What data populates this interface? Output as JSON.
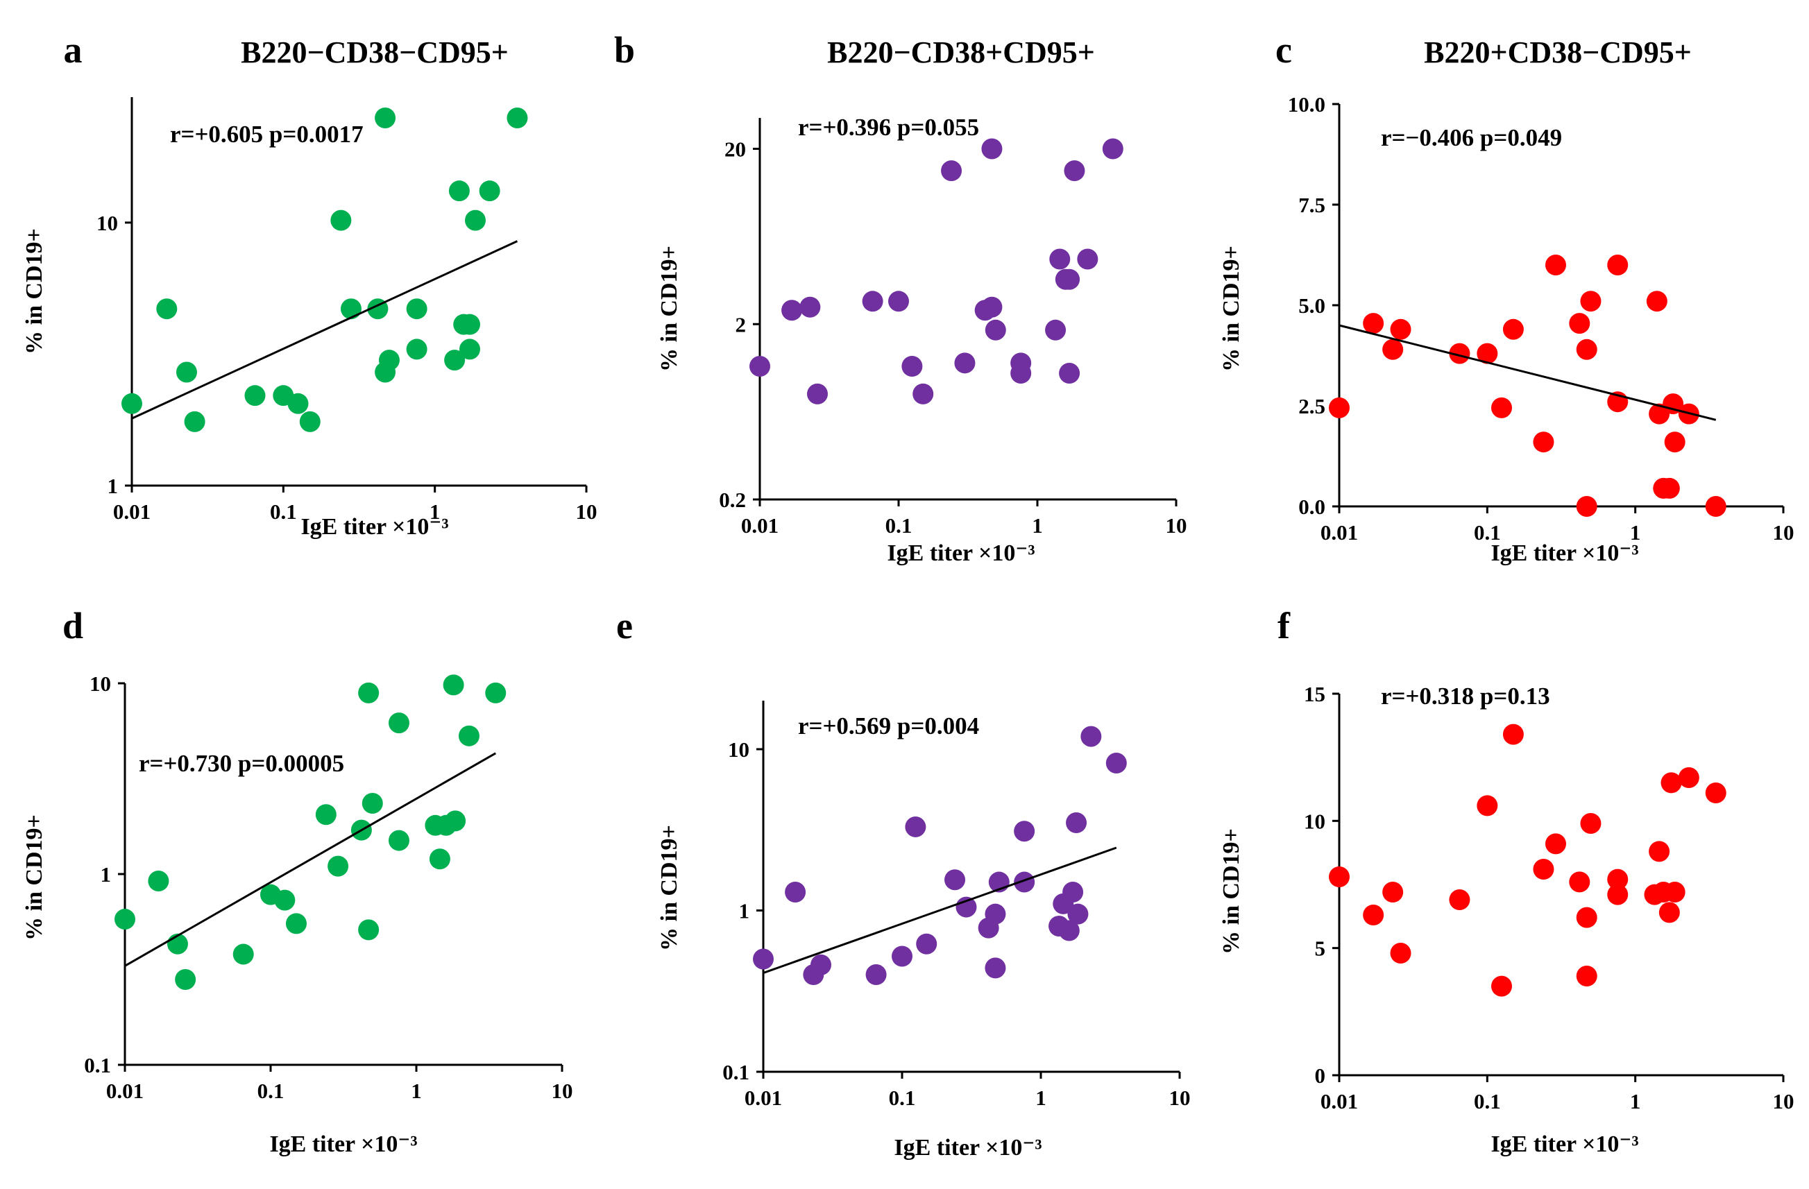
{
  "colors": {
    "green": "#00B050",
    "purple": "#7030A0",
    "red": "#FF0000",
    "axis": "#000000"
  },
  "chart_data": [
    {
      "id": "a",
      "type": "scatter",
      "letter": "a",
      "title": "B220−CD38−CD95+",
      "xlabel": "IgE titer ×10⁻³",
      "ylabel": "% in CD19+",
      "xscale": "log",
      "yscale": "log",
      "xlim": [
        0.01,
        10
      ],
      "ylim": [
        1,
        30
      ],
      "xticks": [
        0.01,
        0.1,
        1,
        10
      ],
      "xtick_labels": [
        "0.01",
        "0.1",
        "1",
        "10"
      ],
      "yticks": [
        1,
        10
      ],
      "ytick_labels": [
        "1",
        "10"
      ],
      "annotation": "r=+0.605 p=0.0017",
      "color": "green",
      "trendline": {
        "x": [
          0.01,
          3.5
        ],
        "y": [
          1.8,
          8.5
        ]
      },
      "points": [
        [
          0.01,
          2.05
        ],
        [
          0.017,
          4.7
        ],
        [
          0.023,
          2.7
        ],
        [
          0.026,
          1.75
        ],
        [
          0.065,
          2.2
        ],
        [
          0.1,
          2.2
        ],
        [
          0.125,
          2.05
        ],
        [
          0.15,
          1.75
        ],
        [
          0.24,
          10.2
        ],
        [
          0.28,
          4.7
        ],
        [
          0.42,
          4.7
        ],
        [
          0.47,
          2.7
        ],
        [
          0.47,
          25
        ],
        [
          0.5,
          3.0
        ],
        [
          0.76,
          4.7
        ],
        [
          0.76,
          3.3
        ],
        [
          1.35,
          3.0
        ],
        [
          1.45,
          13.2
        ],
        [
          1.55,
          4.1
        ],
        [
          1.7,
          4.1
        ],
        [
          1.7,
          3.3
        ],
        [
          1.85,
          10.2
        ],
        [
          2.3,
          13.2
        ],
        [
          3.5,
          25
        ]
      ]
    },
    {
      "id": "b",
      "type": "scatter",
      "letter": "b",
      "title": "B220−CD38+CD95+",
      "xlabel": "IgE titer ×10⁻³",
      "ylabel": "% in CD19+",
      "xscale": "log",
      "yscale": "log",
      "xlim": [
        0.01,
        10
      ],
      "ylim": [
        0.2,
        30
      ],
      "xticks": [
        0.01,
        0.1,
        1,
        10
      ],
      "xtick_labels": [
        "0.01",
        "0.1",
        "1",
        "10"
      ],
      "yticks": [
        0.2,
        2,
        20
      ],
      "ytick_labels": [
        "0.2",
        "2",
        "20"
      ],
      "annotation": "r=+0.396 p=0.055",
      "color": "purple",
      "points": [
        [
          0.01,
          1.15
        ],
        [
          0.017,
          2.4
        ],
        [
          0.023,
          2.5
        ],
        [
          0.026,
          0.8
        ],
        [
          0.065,
          2.7
        ],
        [
          0.1,
          2.7
        ],
        [
          0.125,
          1.15
        ],
        [
          0.15,
          0.8
        ],
        [
          0.24,
          15
        ],
        [
          0.3,
          1.2
        ],
        [
          0.42,
          2.4
        ],
        [
          0.47,
          20
        ],
        [
          0.47,
          2.5
        ],
        [
          0.5,
          1.85
        ],
        [
          0.76,
          1.2
        ],
        [
          0.76,
          1.05
        ],
        [
          1.35,
          1.85
        ],
        [
          1.45,
          4.7
        ],
        [
          1.6,
          3.6
        ],
        [
          1.7,
          3.6
        ],
        [
          1.7,
          1.05
        ],
        [
          1.85,
          15
        ],
        [
          2.3,
          4.7
        ],
        [
          3.5,
          20
        ]
      ]
    },
    {
      "id": "c",
      "type": "scatter",
      "letter": "c",
      "title": "B220+CD38−CD95+",
      "xlabel": "IgE titer ×10⁻³",
      "ylabel": "% in CD19+",
      "xscale": "log",
      "yscale": "linear",
      "xlim": [
        0.01,
        10
      ],
      "ylim": [
        0,
        10
      ],
      "xticks": [
        0.01,
        0.1,
        1,
        10
      ],
      "xtick_labels": [
        "0.01",
        "0.1",
        "1",
        "10"
      ],
      "yticks": [
        0,
        2.5,
        5,
        7.5,
        10
      ],
      "ytick_labels": [
        "0.0",
        "2.5",
        "5.0",
        "7.5",
        "10.0"
      ],
      "annotation": "r=−0.406 p=0.049",
      "color": "red",
      "trendline": {
        "x": [
          0.01,
          3.5
        ],
        "y": [
          4.5,
          2.15
        ]
      },
      "points": [
        [
          0.01,
          2.45
        ],
        [
          0.017,
          4.55
        ],
        [
          0.023,
          3.9
        ],
        [
          0.026,
          4.4
        ],
        [
          0.065,
          3.8
        ],
        [
          0.1,
          3.8
        ],
        [
          0.125,
          2.45
        ],
        [
          0.15,
          4.4
        ],
        [
          0.24,
          1.6
        ],
        [
          0.29,
          6.0
        ],
        [
          0.42,
          4.55
        ],
        [
          0.47,
          3.9
        ],
        [
          0.47,
          0.0
        ],
        [
          0.5,
          5.1
        ],
        [
          0.76,
          6.0
        ],
        [
          0.76,
          2.6
        ],
        [
          1.4,
          5.1
        ],
        [
          1.45,
          2.3
        ],
        [
          1.55,
          0.45
        ],
        [
          1.7,
          0.45
        ],
        [
          1.8,
          2.55
        ],
        [
          1.85,
          1.6
        ],
        [
          2.3,
          2.3
        ],
        [
          3.5,
          0.0
        ]
      ]
    },
    {
      "id": "d",
      "type": "scatter",
      "letter": "d",
      "title": "",
      "xlabel": "IgE titer ×10⁻³",
      "ylabel": "% in CD19+",
      "xscale": "log",
      "yscale": "log",
      "xlim": [
        0.01,
        10
      ],
      "ylim": [
        0.1,
        10
      ],
      "xticks": [
        0.01,
        0.1,
        1,
        10
      ],
      "xtick_labels": [
        "0.01",
        "0.1",
        "1",
        "10"
      ],
      "yticks": [
        0.1,
        1,
        10
      ],
      "ytick_labels": [
        "0.1",
        "1",
        "10"
      ],
      "annotation": "r=+0.730 p=0.00005",
      "color": "green",
      "trendline": {
        "x": [
          0.01,
          3.5
        ],
        "y": [
          0.33,
          4.3
        ]
      },
      "points": [
        [
          0.01,
          0.58
        ],
        [
          0.017,
          0.92
        ],
        [
          0.023,
          0.43
        ],
        [
          0.026,
          0.28
        ],
        [
          0.065,
          0.38
        ],
        [
          0.1,
          0.78
        ],
        [
          0.125,
          0.73
        ],
        [
          0.15,
          0.55
        ],
        [
          0.24,
          2.05
        ],
        [
          0.29,
          1.1
        ],
        [
          0.42,
          1.7
        ],
        [
          0.47,
          8.9
        ],
        [
          0.47,
          0.51
        ],
        [
          0.5,
          2.35
        ],
        [
          0.76,
          6.2
        ],
        [
          0.76,
          1.5
        ],
        [
          1.35,
          1.8
        ],
        [
          1.45,
          1.2
        ],
        [
          1.6,
          1.8
        ],
        [
          1.8,
          9.8
        ],
        [
          1.85,
          1.9
        ],
        [
          2.3,
          5.3
        ],
        [
          3.5,
          8.9
        ]
      ]
    },
    {
      "id": "e",
      "type": "scatter",
      "letter": "e",
      "title": "",
      "xlabel": "IgE titer ×10⁻³",
      "ylabel": "% in CD19+",
      "xscale": "log",
      "yscale": "log",
      "xlim": [
        0.01,
        10
      ],
      "ylim": [
        0.1,
        20
      ],
      "xticks": [
        0.01,
        0.1,
        1,
        10
      ],
      "xtick_labels": [
        "0.01",
        "0.1",
        "1",
        "10"
      ],
      "yticks": [
        0.1,
        1,
        10
      ],
      "ytick_labels": [
        "0.1",
        "1",
        "10"
      ],
      "annotation": "r=+0.569 p=0.004",
      "color": "purple",
      "trendline": {
        "x": [
          0.01,
          3.5
        ],
        "y": [
          0.41,
          2.45
        ]
      },
      "points": [
        [
          0.01,
          0.5
        ],
        [
          0.017,
          1.3
        ],
        [
          0.023,
          0.4
        ],
        [
          0.026,
          0.46
        ],
        [
          0.065,
          0.4
        ],
        [
          0.1,
          0.52
        ],
        [
          0.125,
          3.3
        ],
        [
          0.15,
          0.62
        ],
        [
          0.24,
          1.55
        ],
        [
          0.29,
          1.05
        ],
        [
          0.42,
          0.78
        ],
        [
          0.47,
          0.95
        ],
        [
          0.47,
          0.44
        ],
        [
          0.5,
          1.5
        ],
        [
          0.76,
          3.1
        ],
        [
          0.76,
          1.5
        ],
        [
          1.35,
          0.8
        ],
        [
          1.45,
          1.1
        ],
        [
          1.6,
          0.75
        ],
        [
          1.7,
          1.3
        ],
        [
          1.8,
          3.5
        ],
        [
          1.85,
          0.95
        ],
        [
          2.3,
          12
        ],
        [
          3.5,
          8.2
        ]
      ]
    },
    {
      "id": "f",
      "type": "scatter",
      "letter": "f",
      "title": "",
      "xlabel": "IgE titer ×10⁻³",
      "ylabel": "% in CD19+",
      "xscale": "log",
      "yscale": "linear",
      "xlim": [
        0.01,
        10
      ],
      "ylim": [
        0,
        15
      ],
      "xticks": [
        0.01,
        0.1,
        1,
        10
      ],
      "xtick_labels": [
        "0.01",
        "0.1",
        "1",
        "10"
      ],
      "yticks": [
        0,
        5,
        10,
        15
      ],
      "ytick_labels": [
        "0",
        "5",
        "10",
        "15"
      ],
      "annotation": "r=+0.318 p=0.13",
      "color": "red",
      "points": [
        [
          0.01,
          7.8
        ],
        [
          0.017,
          6.3
        ],
        [
          0.023,
          7.2
        ],
        [
          0.026,
          4.8
        ],
        [
          0.065,
          6.9
        ],
        [
          0.1,
          10.6
        ],
        [
          0.125,
          3.5
        ],
        [
          0.15,
          13.4
        ],
        [
          0.24,
          8.1
        ],
        [
          0.29,
          9.1
        ],
        [
          0.42,
          7.6
        ],
        [
          0.47,
          6.2
        ],
        [
          0.47,
          3.9
        ],
        [
          0.5,
          9.9
        ],
        [
          0.76,
          7.7
        ],
        [
          0.76,
          7.1
        ],
        [
          1.35,
          7.1
        ],
        [
          1.45,
          8.8
        ],
        [
          1.55,
          7.2
        ],
        [
          1.7,
          6.4
        ],
        [
          1.75,
          11.5
        ],
        [
          1.85,
          7.2
        ],
        [
          2.3,
          11.7
        ],
        [
          3.5,
          11.1
        ]
      ]
    }
  ]
}
